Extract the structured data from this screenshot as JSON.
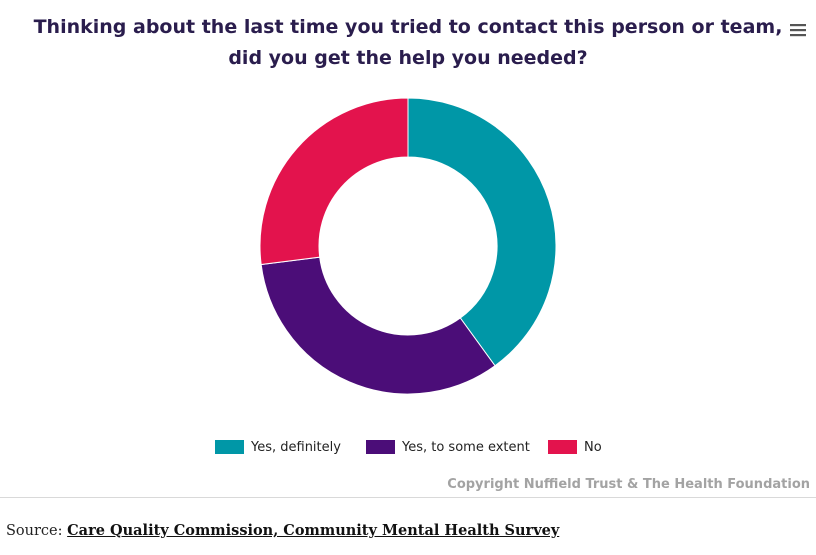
{
  "title": "Thinking about the last time you tried to contact this person or team, did you get the help you needed?",
  "menu_icon": "hamburger-menu-icon",
  "chart_data": {
    "type": "pie",
    "variant": "donut",
    "title": "Thinking about the last time you tried to contact this person or team, did you get the help you needed?",
    "series": [
      {
        "values": [
          {
            "label": "Yes, definitely",
            "value": 40,
            "color": "#0097a7"
          },
          {
            "label": "Yes, to some extent",
            "value": 33,
            "color": "#4b0d78"
          },
          {
            "label": "No",
            "value": 27,
            "color": "#e3134d"
          }
        ]
      }
    ],
    "start_angle": "12 o'clock, clockwise",
    "legend_position": "bottom"
  },
  "legend": [
    {
      "label": "Yes, definitely",
      "color": "#0097a7"
    },
    {
      "label": "Yes, to some extent",
      "color": "#4b0d78"
    },
    {
      "label": "No",
      "color": "#e3134d"
    }
  ],
  "credit": "Copyright Nuffield Trust & The Health Foundation",
  "source": {
    "prefix": "Source: ",
    "link_text": "Care Quality Commission, Community Mental Health Survey"
  }
}
